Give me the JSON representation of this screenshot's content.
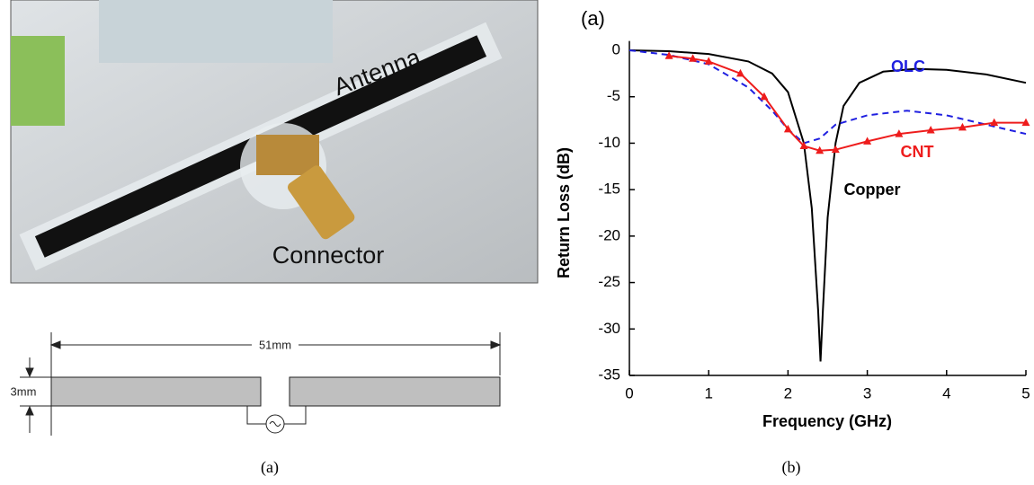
{
  "photo": {
    "labels": [
      "Antenna",
      "Connector"
    ]
  },
  "diagram": {
    "length": "51mm",
    "width": "3mm"
  },
  "captions": [
    "(a)",
    "(b)"
  ],
  "chart_data": {
    "type": "line",
    "label": "(a)",
    "x_label": "Frequency (GHz)",
    "y_label": "Return Loss (dB)",
    "xlim": [
      0,
      5
    ],
    "ylim": [
      -35,
      1
    ],
    "xticks": [
      0,
      1,
      2,
      3,
      4,
      5
    ],
    "yticks": [
      0,
      -5,
      -10,
      -15,
      -20,
      -25,
      -30,
      -35
    ],
    "series": [
      {
        "name": "Copper",
        "color": "#000000",
        "style": "solid",
        "marker": "none",
        "x": [
          0,
          0.5,
          1,
          1.5,
          1.8,
          2,
          2.2,
          2.3,
          2.38,
          2.41,
          2.44,
          2.5,
          2.6,
          2.7,
          2.9,
          3.2,
          3.6,
          4,
          4.5,
          5
        ],
        "values": [
          0,
          -0.1,
          -0.4,
          -1.2,
          -2.5,
          -4.5,
          -10,
          -17,
          -28,
          -33.5,
          -28,
          -18,
          -10,
          -6,
          -3.5,
          -2.3,
          -2,
          -2.1,
          -2.6,
          -3.5
        ]
      },
      {
        "name": "OLC",
        "color": "#1f1fe0",
        "style": "dashed",
        "marker": "none",
        "x": [
          0,
          0.5,
          1,
          1.5,
          1.8,
          2,
          2.2,
          2.4,
          2.6,
          3,
          3.5,
          4,
          4.5,
          5
        ],
        "values": [
          0,
          -0.5,
          -1.5,
          -4,
          -6.5,
          -8.5,
          -10,
          -9.5,
          -8,
          -7,
          -6.5,
          -7,
          -8,
          -9
        ]
      },
      {
        "name": "CNT",
        "color": "#ee1c1c",
        "style": "solid",
        "marker": "triangle",
        "x": [
          0.5,
          0.8,
          1,
          1.4,
          1.7,
          2,
          2.2,
          2.4,
          2.6,
          3,
          3.4,
          3.8,
          4.2,
          4.6,
          5
        ],
        "values": [
          -0.6,
          -0.9,
          -1.2,
          -2.5,
          -5,
          -8.5,
          -10.3,
          -10.8,
          -10.7,
          -9.8,
          -9,
          -8.6,
          -8.3,
          -7.8,
          -7.8
        ]
      }
    ]
  }
}
